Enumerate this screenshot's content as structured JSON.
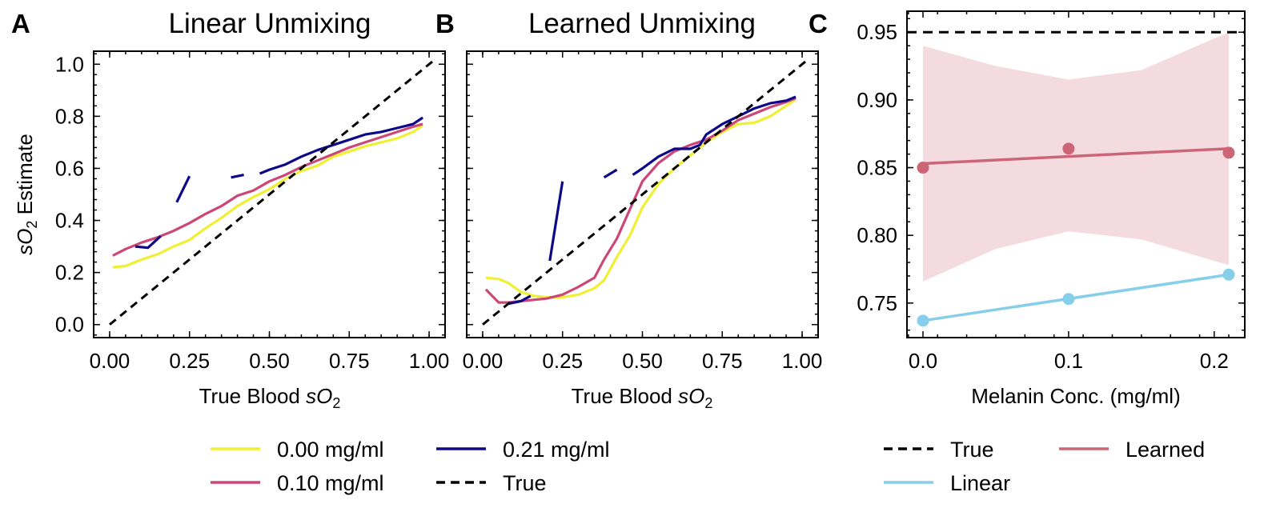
{
  "figure": {
    "panels": [
      {
        "letter": "A",
        "title": "Linear Unmixing",
        "xlabel_main": "True Blood ",
        "xlabel_var": "sO",
        "xlabel_sub": "2",
        "ylabel_var": "sO",
        "ylabel_sub": "2",
        "ylabel_rest": " Estimate"
      },
      {
        "letter": "B",
        "title": "Learned Unmixing",
        "xlabel_main": "True Blood ",
        "xlabel_var": "sO",
        "xlabel_sub": "2"
      },
      {
        "letter": "C",
        "title": "",
        "xlabel": "Melanin Conc. (mg/ml)"
      }
    ],
    "legend_ab": [
      "0.00 mg/ml",
      "0.21 mg/ml",
      "0.10 mg/ml",
      "True"
    ],
    "legend_c": [
      "True",
      "Learned",
      "Linear"
    ]
  },
  "colors": {
    "yellow": "#f0f033",
    "pink": "#cc4778",
    "navy": "#0d0887",
    "black": "#000000",
    "lightblue": "#87ceeb",
    "rose": "#cc6677",
    "band": "#f3dbe0"
  },
  "chart_data": [
    {
      "type": "line",
      "title": "Linear Unmixing",
      "xlabel": "True Blood sO2",
      "ylabel": "sO2 Estimate",
      "xlim": [
        -0.05,
        1.05
      ],
      "ylim": [
        -0.05,
        1.05
      ],
      "xticks": [
        0.0,
        0.25,
        0.5,
        0.75,
        1.0
      ],
      "xtick_labels": [
        "0.00",
        "0.25",
        "0.50",
        "0.75",
        "1.00"
      ],
      "yticks": [
        0.0,
        0.2,
        0.4,
        0.6,
        0.8,
        1.0
      ],
      "ytick_labels": [
        "0.0",
        "0.2",
        "0.4",
        "0.6",
        "0.8",
        "1.0"
      ],
      "series": [
        {
          "name": "0.00 mg/ml",
          "color": "#f0f033",
          "dashed": false,
          "x": [
            0.01,
            0.05,
            0.1,
            0.15,
            0.2,
            0.25,
            0.3,
            0.35,
            0.4,
            0.45,
            0.5,
            0.55,
            0.6,
            0.65,
            0.7,
            0.75,
            0.8,
            0.85,
            0.9,
            0.95,
            0.98
          ],
          "y": [
            0.22,
            0.225,
            0.25,
            0.27,
            0.3,
            0.325,
            0.37,
            0.41,
            0.455,
            0.49,
            0.52,
            0.56,
            0.59,
            0.61,
            0.645,
            0.665,
            0.685,
            0.7,
            0.715,
            0.74,
            0.765
          ]
        },
        {
          "name": "0.10 mg/ml",
          "color": "#cc4778",
          "dashed": false,
          "x": [
            0.01,
            0.05,
            0.1,
            0.15,
            0.2,
            0.25,
            0.3,
            0.35,
            0.4,
            0.45,
            0.5,
            0.55,
            0.6,
            0.65,
            0.7,
            0.75,
            0.8,
            0.85,
            0.9,
            0.95,
            0.98
          ],
          "y": [
            0.265,
            0.29,
            0.315,
            0.335,
            0.36,
            0.39,
            0.425,
            0.455,
            0.495,
            0.515,
            0.55,
            0.575,
            0.605,
            0.63,
            0.655,
            0.68,
            0.7,
            0.72,
            0.74,
            0.76,
            0.77
          ]
        },
        {
          "name": "0.21 mg/ml",
          "color": "#0d0887",
          "dashed": false,
          "segments": [
            {
              "x": [
                0.08,
                0.12,
                0.16
              ],
              "y": [
                0.3,
                0.295,
                0.34
              ]
            },
            {
              "x": [
                0.21,
                0.25
              ],
              "y": [
                0.47,
                0.57
              ]
            },
            {
              "x": [
                0.38,
                0.42
              ],
              "y": [
                0.565,
                0.575
              ]
            },
            {
              "x": [
                0.47,
                0.5,
                0.55,
                0.6,
                0.65,
                0.7,
                0.75,
                0.8,
                0.85,
                0.9,
                0.95,
                0.98
              ],
              "y": [
                0.58,
                0.595,
                0.615,
                0.645,
                0.67,
                0.69,
                0.71,
                0.73,
                0.74,
                0.755,
                0.77,
                0.795
              ]
            }
          ]
        },
        {
          "name": "True",
          "color": "#000000",
          "dashed": true,
          "x": [
            0.0,
            1.02
          ],
          "y": [
            0.0,
            1.02
          ]
        }
      ]
    },
    {
      "type": "line",
      "title": "Learned Unmixing",
      "xlabel": "True Blood sO2",
      "xlim": [
        -0.05,
        1.05
      ],
      "ylim": [
        -0.05,
        1.05
      ],
      "xticks": [
        0.0,
        0.25,
        0.5,
        0.75,
        1.0
      ],
      "xtick_labels": [
        "0.00",
        "0.25",
        "0.50",
        "0.75",
        "1.00"
      ],
      "yticks": [
        0.0,
        0.2,
        0.4,
        0.6,
        0.8,
        1.0
      ],
      "series": [
        {
          "name": "0.00 mg/ml",
          "color": "#f0f033",
          "dashed": false,
          "x": [
            0.01,
            0.05,
            0.08,
            0.12,
            0.16,
            0.2,
            0.25,
            0.3,
            0.35,
            0.38,
            0.42,
            0.46,
            0.5,
            0.55,
            0.6,
            0.65,
            0.7,
            0.75,
            0.8,
            0.85,
            0.9,
            0.95,
            0.98
          ],
          "y": [
            0.18,
            0.175,
            0.16,
            0.125,
            0.11,
            0.105,
            0.105,
            0.115,
            0.14,
            0.17,
            0.26,
            0.34,
            0.45,
            0.54,
            0.6,
            0.65,
            0.7,
            0.74,
            0.77,
            0.775,
            0.8,
            0.84,
            0.865
          ]
        },
        {
          "name": "0.10 mg/ml",
          "color": "#cc4778",
          "dashed": false,
          "x": [
            0.01,
            0.05,
            0.08,
            0.12,
            0.16,
            0.2,
            0.25,
            0.3,
            0.35,
            0.38,
            0.42,
            0.46,
            0.5,
            0.55,
            0.6,
            0.65,
            0.7,
            0.75,
            0.8,
            0.85,
            0.9,
            0.95,
            0.98
          ],
          "y": [
            0.135,
            0.085,
            0.085,
            0.09,
            0.095,
            0.1,
            0.115,
            0.145,
            0.18,
            0.25,
            0.33,
            0.44,
            0.55,
            0.62,
            0.665,
            0.69,
            0.71,
            0.745,
            0.785,
            0.81,
            0.835,
            0.855,
            0.87
          ]
        },
        {
          "name": "0.21 mg/ml",
          "color": "#0d0887",
          "dashed": false,
          "segments": [
            {
              "x": [
                0.08,
                0.12,
                0.15
              ],
              "y": [
                0.08,
                0.09,
                0.11
              ]
            },
            {
              "x": [
                0.21,
                0.25
              ],
              "y": [
                0.245,
                0.55
              ]
            },
            {
              "x": [
                0.38,
                0.42
              ],
              "y": [
                0.565,
                0.595
              ]
            },
            {
              "x": [
                0.47,
                0.5,
                0.55,
                0.6,
                0.65,
                0.68,
                0.7,
                0.75,
                0.8,
                0.85,
                0.9,
                0.95,
                0.98
              ],
              "y": [
                0.575,
                0.6,
                0.645,
                0.675,
                0.675,
                0.69,
                0.73,
                0.77,
                0.8,
                0.83,
                0.85,
                0.86,
                0.875
              ]
            }
          ]
        },
        {
          "name": "True",
          "color": "#000000",
          "dashed": true,
          "x": [
            0.0,
            1.02
          ],
          "y": [
            0.0,
            1.02
          ]
        }
      ]
    },
    {
      "type": "scatter",
      "xlabel": "Melanin Conc. (mg/ml)",
      "xlim": [
        -0.011,
        0.221
      ],
      "ylim": [
        0.7245,
        0.9655
      ],
      "xticks": [
        0.0,
        0.1,
        0.2
      ],
      "xtick_labels": [
        "0.0",
        "0.1",
        "0.2"
      ],
      "yticks": [
        0.75,
        0.8,
        0.85,
        0.9,
        0.95
      ],
      "ytick_labels": [
        "0.75",
        "0.80",
        "0.85",
        "0.90",
        "0.95"
      ],
      "true_value": 0.95,
      "series": [
        {
          "name": "Learned",
          "color": "#cc6677",
          "points_x": [
            0.0,
            0.1,
            0.21
          ],
          "points_y": [
            0.85,
            0.864,
            0.861
          ],
          "fit": {
            "x": [
              0.0,
              0.21
            ],
            "y": [
              0.853,
              0.864
            ]
          },
          "band": {
            "x": [
              0.0,
              0.05,
              0.1,
              0.15,
              0.21
            ],
            "upper": [
              0.94,
              0.925,
              0.915,
              0.922,
              0.95
            ],
            "lower": [
              0.766,
              0.79,
              0.803,
              0.797,
              0.778
            ]
          }
        },
        {
          "name": "Linear",
          "color": "#87ceeb",
          "points_x": [
            0.0,
            0.1,
            0.21
          ],
          "points_y": [
            0.737,
            0.753,
            0.771
          ],
          "fit": {
            "x": [
              0.0,
              0.21
            ],
            "y": [
              0.737,
              0.771
            ]
          }
        }
      ]
    }
  ]
}
